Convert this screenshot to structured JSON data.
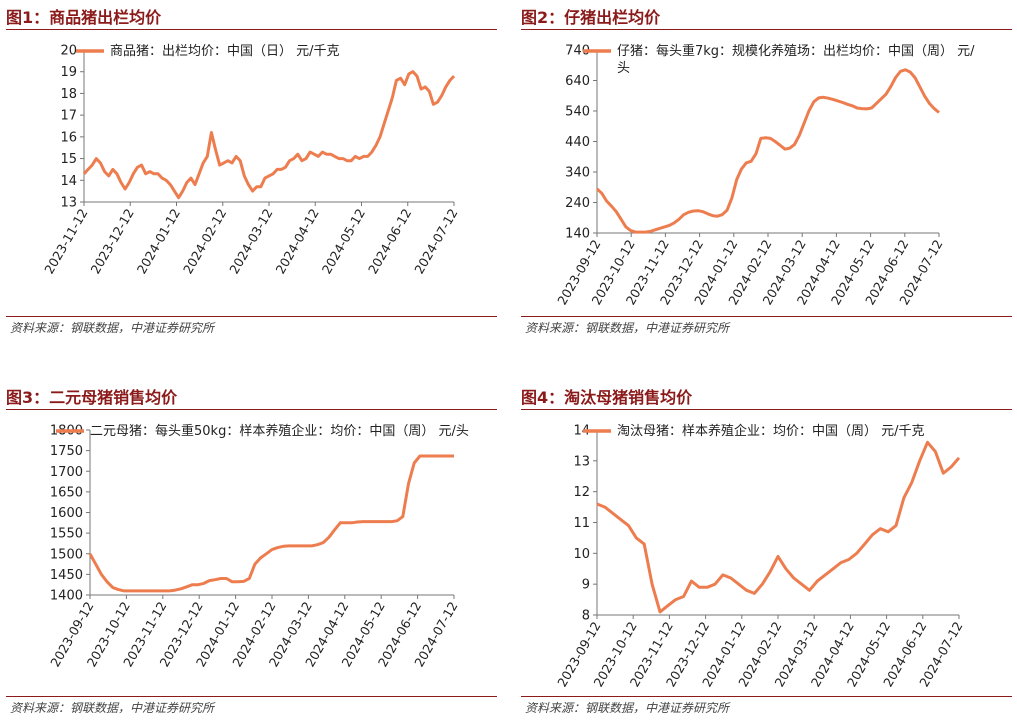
{
  "panels": [
    {
      "title": "图1：商品猪出栏均价",
      "source": "资料来源：钢联数据，中港证券研究所"
    },
    {
      "title": "图2：仔猪出栏均价",
      "source": "资料来源：钢联数据，中港证券研究所"
    },
    {
      "title": "图3：二元母猪销售均价",
      "source": "资料来源：钢联数据，中港证券研究所"
    },
    {
      "title": "图4：淘汰母猪销售均价",
      "source": "资料来源：钢联数据，中港证券研究所"
    }
  ],
  "chart_data": [
    {
      "type": "line",
      "color": "#ed7d4f",
      "series": [
        {
          "name": "商品猪：出栏均价：中国（日） 元/千克",
          "values": [
            14.3,
            14.5,
            14.7,
            15.0,
            14.8,
            14.4,
            14.2,
            14.5,
            14.3,
            13.9,
            13.6,
            13.9,
            14.3,
            14.6,
            14.7,
            14.3,
            14.4,
            14.3,
            14.3,
            14.1,
            14.0,
            13.8,
            13.5,
            13.2,
            13.5,
            13.9,
            14.1,
            13.8,
            14.3,
            14.8,
            15.1,
            16.2,
            15.4,
            14.7,
            14.8,
            14.9,
            14.8,
            15.1,
            14.9,
            14.2,
            13.8,
            13.5,
            13.7,
            13.7,
            14.1,
            14.2,
            14.3,
            14.5,
            14.5,
            14.6,
            14.9,
            15.0,
            15.2,
            14.9,
            15.0,
            15.3,
            15.2,
            15.1,
            15.3,
            15.2,
            15.2,
            15.1,
            15.0,
            15.0,
            14.9,
            14.9,
            15.1,
            15.0,
            15.1,
            15.1,
            15.3,
            15.6,
            16.0,
            16.6,
            17.2,
            17.8,
            18.6,
            18.7,
            18.4,
            18.9,
            19.0,
            18.8,
            18.2,
            18.3,
            18.1,
            17.5,
            17.6,
            17.9,
            18.3,
            18.6,
            18.8
          ]
        }
      ],
      "x_ticks": [
        "2023-11-12",
        "2023-12-12",
        "2024-01-12",
        "2024-02-12",
        "2024-03-12",
        "2024-04-12",
        "2024-05-12",
        "2024-06-12",
        "2024-07-12"
      ],
      "y_ticks": [
        "13",
        "14",
        "15",
        "16",
        "17",
        "18",
        "19",
        "20"
      ],
      "ylim": [
        13,
        20
      ],
      "legend": "top-left"
    },
    {
      "type": "line",
      "color": "#ed7d4f",
      "series": [
        {
          "name": "仔猪：每头重7kg：规模化养殖场：出栏均价：中国（周） 元/头",
          "values": [
            285,
            270,
            245,
            228,
            210,
            185,
            160,
            148,
            143,
            143,
            143,
            145,
            150,
            155,
            160,
            165,
            173,
            185,
            200,
            208,
            212,
            213,
            210,
            203,
            197,
            195,
            200,
            215,
            255,
            315,
            350,
            370,
            375,
            400,
            450,
            452,
            450,
            440,
            428,
            415,
            418,
            430,
            460,
            500,
            540,
            570,
            583,
            585,
            582,
            578,
            573,
            568,
            562,
            557,
            550,
            548,
            547,
            550,
            565,
            580,
            595,
            620,
            650,
            670,
            675,
            668,
            650,
            620,
            590,
            565,
            548,
            535
          ]
        }
      ],
      "x_ticks": [
        "2023-09-12",
        "2023-10-12",
        "2023-11-12",
        "2023-12-12",
        "2024-01-12",
        "2024-02-12",
        "2024-03-12",
        "2024-04-12",
        "2024-05-12",
        "2024-06-12",
        "2024-07-12"
      ],
      "y_ticks": [
        "140",
        "240",
        "340",
        "440",
        "540",
        "640",
        "740"
      ],
      "ylim": [
        140,
        740
      ],
      "legend": "top-left"
    },
    {
      "type": "line",
      "color": "#ed7d4f",
      "series": [
        {
          "name": "二元母猪：每头重50kg：样本养殖企业：均价：中国（周） 元/头",
          "values": [
            1500,
            1475,
            1450,
            1432,
            1418,
            1413,
            1410,
            1410,
            1410,
            1410,
            1410,
            1410,
            1410,
            1410,
            1410,
            1412,
            1415,
            1420,
            1425,
            1425,
            1428,
            1435,
            1437,
            1440,
            1440,
            1432,
            1432,
            1433,
            1440,
            1475,
            1490,
            1500,
            1510,
            1515,
            1518,
            1519,
            1519,
            1519,
            1519,
            1519,
            1522,
            1527,
            1540,
            1558,
            1575,
            1575,
            1575,
            1577,
            1578,
            1578,
            1578,
            1578,
            1578,
            1578,
            1580,
            1590,
            1670,
            1720,
            1737,
            1737,
            1737,
            1737,
            1737,
            1737,
            1737
          ]
        }
      ],
      "x_ticks": [
        "2023-09-12",
        "2023-10-12",
        "2023-11-12",
        "2023-12-12",
        "2024-01-12",
        "2024-02-12",
        "2024-03-12",
        "2024-04-12",
        "2024-05-12",
        "2024-06-12",
        "2024-07-12"
      ],
      "y_ticks": [
        "1400",
        "1450",
        "1500",
        "1550",
        "1600",
        "1650",
        "1700",
        "1750",
        "1800"
      ],
      "ylim": [
        1400,
        1800
      ],
      "legend": "top-left"
    },
    {
      "type": "line",
      "color": "#ed7d4f",
      "series": [
        {
          "name": "淘汰母猪：样本养殖企业：均价：中国（周） 元/千克",
          "values": [
            11.6,
            11.5,
            11.3,
            11.1,
            10.9,
            10.5,
            10.3,
            9.0,
            8.1,
            8.3,
            8.5,
            8.6,
            9.1,
            8.9,
            8.9,
            9.0,
            9.3,
            9.2,
            9.0,
            8.8,
            8.7,
            9.0,
            9.4,
            9.9,
            9.5,
            9.2,
            9.0,
            8.8,
            9.1,
            9.3,
            9.5,
            9.7,
            9.8,
            10.0,
            10.3,
            10.6,
            10.8,
            10.7,
            10.9,
            11.8,
            12.3,
            13.0,
            13.6,
            13.3,
            12.6,
            12.8,
            13.1
          ]
        }
      ],
      "x_ticks": [
        "2023-09-12",
        "2023-10-12",
        "2023-11-12",
        "2023-12-12",
        "2024-01-12",
        "2024-02-12",
        "2024-03-12",
        "2024-04-12",
        "2024-05-12",
        "2024-06-12",
        "2024-07-12"
      ],
      "y_ticks": [
        "8",
        "9",
        "10",
        "11",
        "12",
        "13",
        "14"
      ],
      "ylim": [
        8,
        14
      ],
      "legend": "top-left"
    }
  ]
}
